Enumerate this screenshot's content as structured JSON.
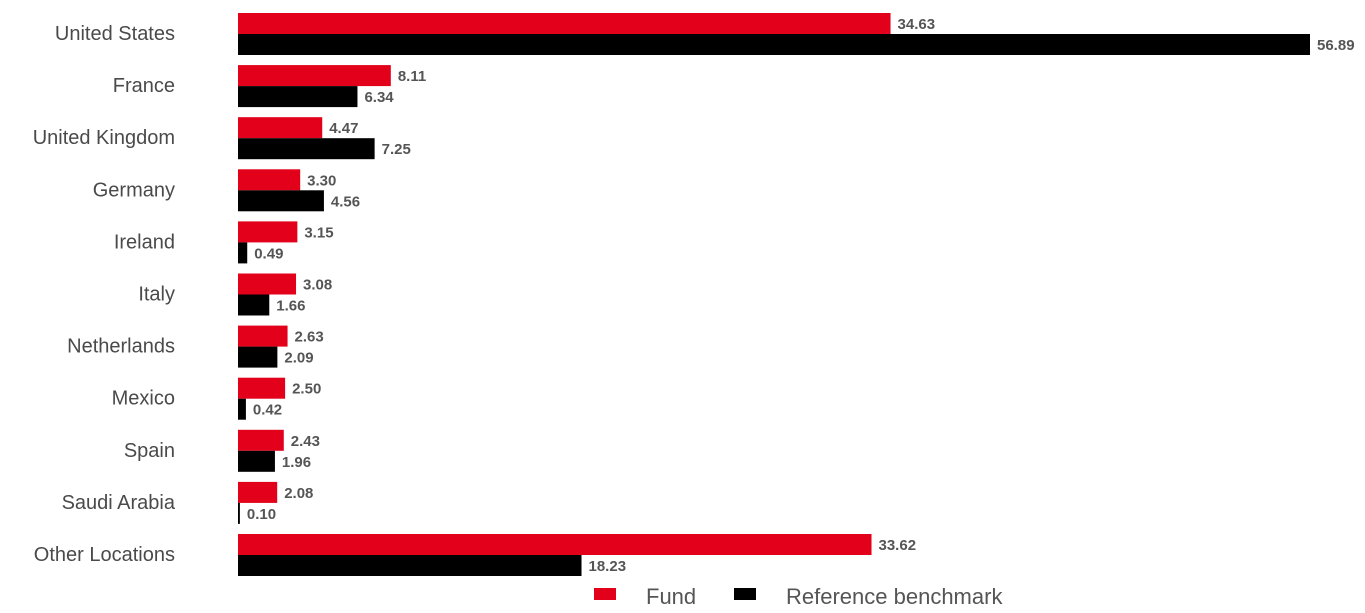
{
  "chart_data": {
    "type": "bar",
    "orientation": "horizontal",
    "title": "",
    "xlabel": "",
    "ylabel": "",
    "categories": [
      "United States",
      "France",
      "United Kingdom",
      "Germany",
      "Ireland",
      "Italy",
      "Netherlands",
      "Mexico",
      "Spain",
      "Saudi Arabia",
      "Other Locations"
    ],
    "series": [
      {
        "name": "Fund",
        "color": "#e2001a",
        "values": [
          34.63,
          8.11,
          4.47,
          3.3,
          3.15,
          3.08,
          2.63,
          2.5,
          2.43,
          2.08,
          33.62
        ],
        "labels": [
          "34.63",
          "8.11",
          "4.47",
          "3.30",
          "3.15",
          "3.08",
          "2.63",
          "2.50",
          "2.43",
          "2.08",
          "33.62"
        ]
      },
      {
        "name": "Reference benchmark",
        "color": "#000000",
        "values": [
          56.89,
          6.34,
          7.25,
          4.56,
          0.49,
          1.66,
          2.09,
          0.42,
          1.96,
          0.1,
          18.23
        ],
        "labels": [
          "56.89",
          "6.34",
          "7.25",
          "4.56",
          "0.49",
          "1.66",
          "2.09",
          "0.42",
          "1.96",
          "0.10",
          "18.23"
        ]
      }
    ],
    "xlim": [
      0,
      56.89
    ],
    "grid": false,
    "legend": "bottom-center"
  }
}
